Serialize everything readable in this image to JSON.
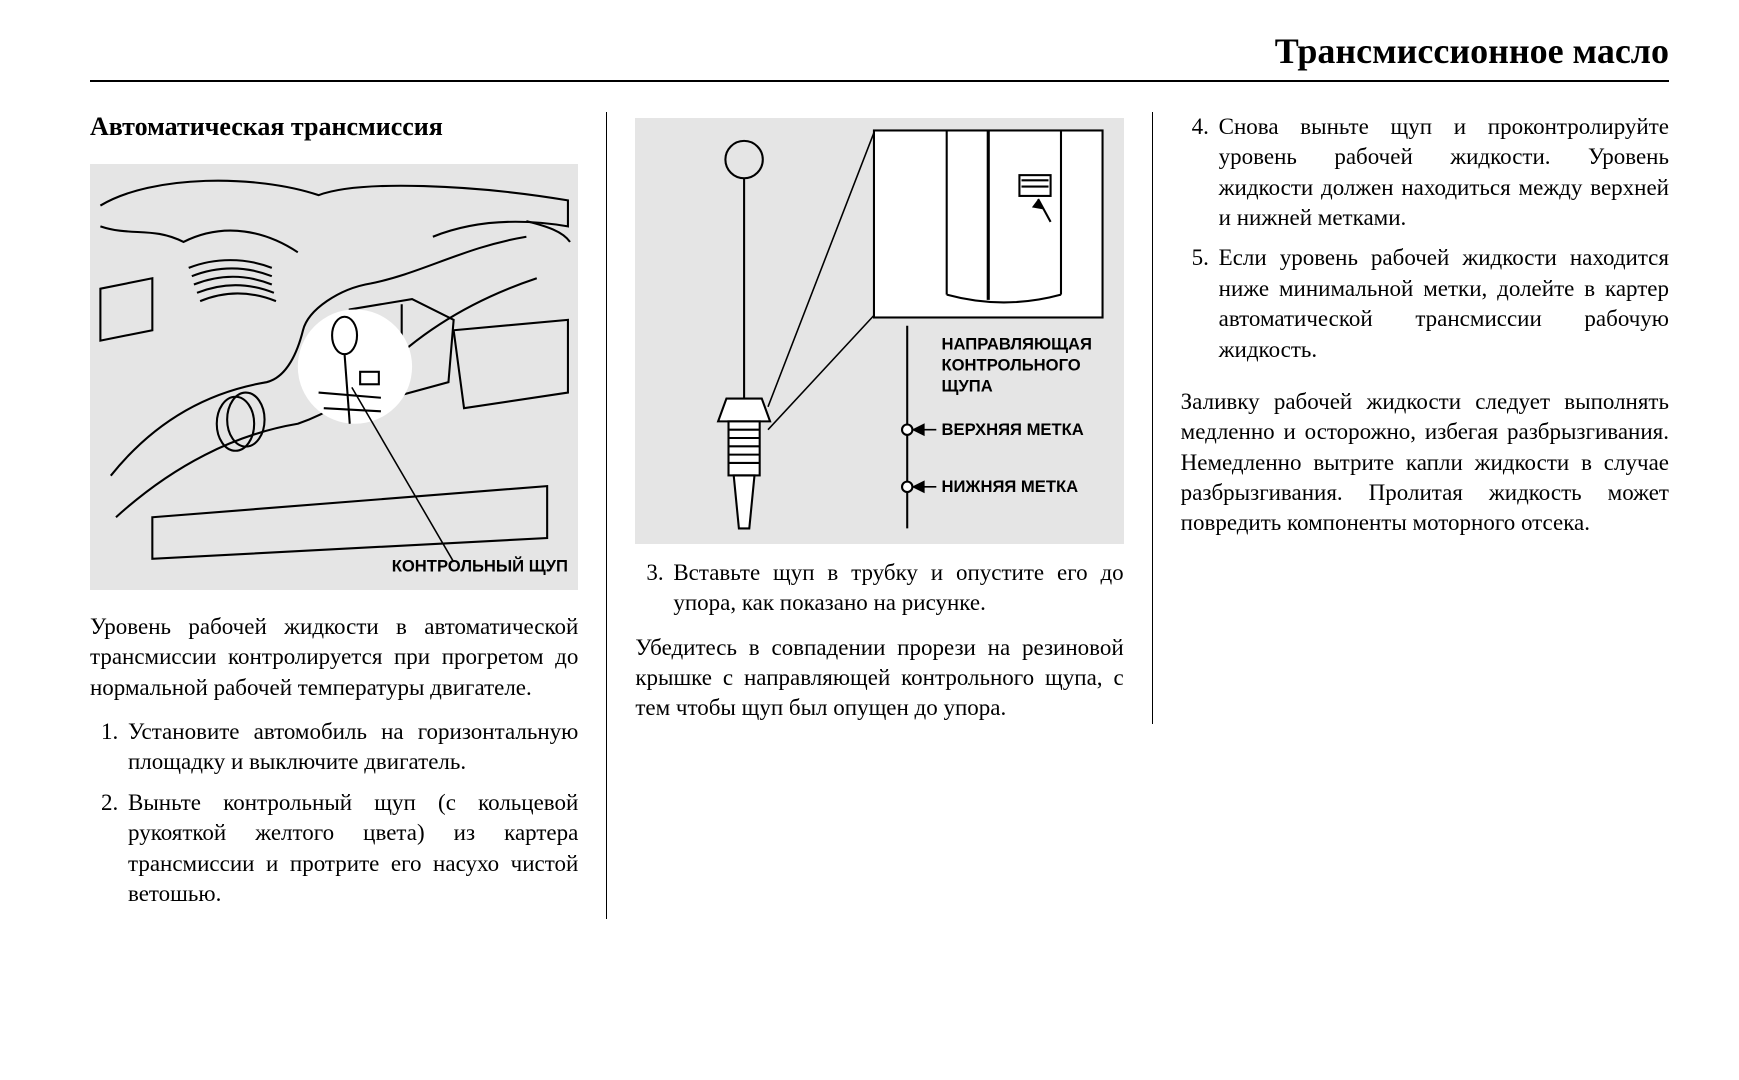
{
  "header": {
    "title": "Трансмиссионное масло"
  },
  "column1": {
    "subheading": "Автоматическая трансмиссия",
    "figure": {
      "background": "#e5e5e5",
      "stroke": "#000000",
      "label_dipstick": "КОНТРОЛЬНЫЙ ЩУП",
      "label_font": "Arial",
      "label_fontsize": 16
    },
    "intro": "Уровень рабочей жидкости в автоматической трансмиссии контролируется при прогретом до нормальной рабочей температуры двигателе.",
    "steps": [
      "Установите автомобиль на горизонтальную площадку и выключите двигатель.",
      "Выньте контрольный щуп (с кольцевой рукояткой желтого цвета) из картера трансмиссии и протрите его насухо чистой ветошью."
    ],
    "steps_start": 1
  },
  "column2": {
    "figure": {
      "background": "#e5e5e5",
      "stroke": "#000000",
      "label_guide": "НАПРАВЛЯЮЩАЯ КОНТРОЛЬНОГО ЩУПА",
      "label_upper": "ВЕРХНЯЯ МЕТКА",
      "label_lower": "НИЖНЯЯ МЕТКА",
      "label_font": "Arial",
      "label_fontsize": 16
    },
    "steps": [
      "Вставьте щуп в трубку и опустите его до упора, как показано на рисунке."
    ],
    "steps_start": 3,
    "note": "Убедитесь в совпадении прорези на резиновой крышке с направляющей контрольного щупа, с тем чтобы щуп был опущен до упора."
  },
  "column3": {
    "steps": [
      "Снова выньте щуп и проконтролируйте уровень рабочей жидкости. Уровень жидкости должен находиться между верхней и нижней метками.",
      "Если уровень рабочей жидкости находится ниже минимальной метки, долейте в картер автоматической трансмиссии рабочую жидкость."
    ],
    "steps_start": 4,
    "closing": "Заливку рабочей жидкости следует выполнять медленно и осторожно, избегая разбрызгивания. Немедленно вытрите капли жидкости в случае разбрызгивания. Пролитая жидкость может повредить компоненты моторного отсека."
  },
  "typography": {
    "body_fontsize": 23,
    "heading_fontsize": 26,
    "header_fontsize": 36,
    "line_height": 1.32,
    "text_color": "#000000",
    "page_background": "#ffffff",
    "figure_background": "#e5e5e5",
    "rule_color": "#000000"
  }
}
